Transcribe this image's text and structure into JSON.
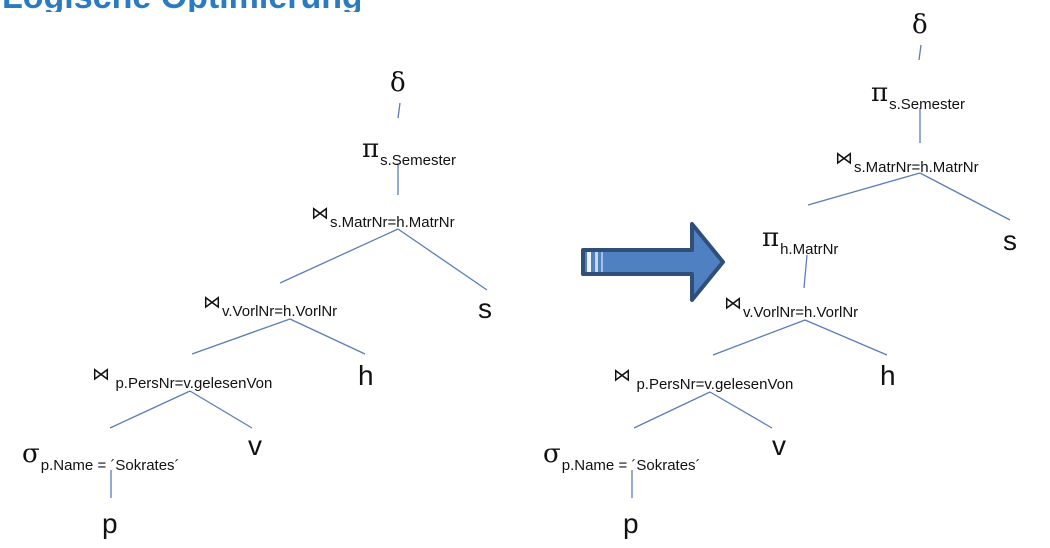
{
  "colors": {
    "edge": "#5b7db8",
    "arrow_fill": "#4f81c2",
    "arrow_stroke": "#2f4f7a",
    "title": "#2a7bbf"
  },
  "slide_title_fragment": "Logische Optimierung",
  "left_tree": {
    "delta": {
      "symbol": "δ",
      "sub": ""
    },
    "pi": {
      "symbol": "π",
      "sub": "s.Semester"
    },
    "join_s": {
      "symbol": "⋈",
      "sub": "s.MatrNr=h.MatrNr"
    },
    "join_v": {
      "symbol": "⋈",
      "sub": "v.VorlNr=h.VorlNr"
    },
    "join_p": {
      "symbol": "⋈",
      "sub": "p.PersNr=v.gelesenVon"
    },
    "sigma": {
      "symbol": "σ",
      "sub": "p.Name = ´Sokrates´"
    },
    "rel_s": "s",
    "rel_h": "h",
    "rel_v": "v",
    "rel_p": "p"
  },
  "right_tree": {
    "delta": {
      "symbol": "δ",
      "sub": ""
    },
    "pi": {
      "symbol": "π",
      "sub": "s.Semester"
    },
    "join_s": {
      "symbol": "⋈",
      "sub": "s.MatrNr=h.MatrNr"
    },
    "pi_h": {
      "symbol": "π",
      "sub": "h.MatrNr"
    },
    "join_v": {
      "symbol": "⋈",
      "sub": "v.VorlNr=h.VorlNr"
    },
    "join_p": {
      "symbol": "⋈",
      "sub": "p.PersNr=v.gelesenVon"
    },
    "sigma": {
      "symbol": "σ",
      "sub": "p.Name = ´Sokrates´"
    },
    "rel_s": "s",
    "rel_h": "h",
    "rel_v": "v",
    "rel_p": "p"
  },
  "transform_arrow": {
    "icon": "right-arrow-icon"
  }
}
